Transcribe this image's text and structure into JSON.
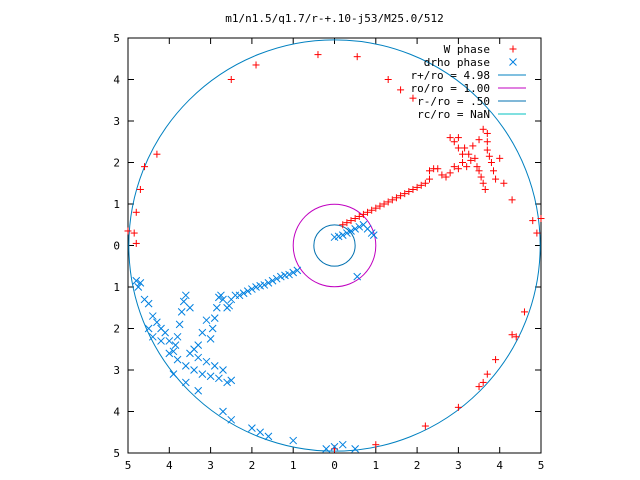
{
  "chart_data": {
    "type": "scatter",
    "title": "m1/n1.5/q1.7/r-+.10-j53/M25.0/512",
    "xlim": [
      -5,
      5
    ],
    "ylim": [
      -5,
      5
    ],
    "x_ticks": [
      -5,
      -4,
      -3,
      -2,
      -1,
      0,
      1,
      2,
      3,
      4,
      5
    ],
    "y_ticks": [
      -5,
      -4,
      -3,
      -2,
      -1,
      0,
      1,
      2,
      3,
      4,
      5
    ],
    "x_tick_labels": [
      "5",
      "4",
      "3",
      "2",
      "1",
      "0",
      "1",
      "2",
      "3",
      "4",
      "5"
    ],
    "y_tick_labels": [
      "5",
      "4",
      "3",
      "2",
      "1",
      "0",
      "1",
      "2",
      "3",
      "4",
      "5"
    ],
    "grid": false,
    "legend_position": "top-right",
    "legend": [
      {
        "label": "W phase",
        "type": "points",
        "marker": "+",
        "color": "#ff0000"
      },
      {
        "label": "drho phase",
        "type": "points",
        "marker": "x",
        "color": "#0080e0"
      },
      {
        "label": "r+/ro = 4.98",
        "type": "line",
        "color": "#0080c0"
      },
      {
        "label": "ro/ro = 1.00",
        "type": "line",
        "color": "#c000c0"
      },
      {
        "label": "r-/ro = .50",
        "type": "line",
        "color": "#0070b0"
      },
      {
        "label": "rc/ro = NaN",
        "type": "line",
        "color": "#00c0c0"
      }
    ],
    "circles": [
      {
        "name": "r+/ro",
        "radius": 4.98,
        "color": "#0080c0"
      },
      {
        "name": "ro/ro",
        "radius": 1.0,
        "color": "#c000c0"
      },
      {
        "name": "r-/ro",
        "radius": 0.5,
        "color": "#0070b0"
      }
    ],
    "series": [
      {
        "name": "W phase",
        "marker": "+",
        "color": "#ff0000",
        "points": [
          [
            -0.4,
            4.6
          ],
          [
            -1.9,
            4.35
          ],
          [
            -2.5,
            4.0
          ],
          [
            -4.3,
            2.2
          ],
          [
            -4.6,
            1.9
          ],
          [
            -4.7,
            1.35
          ],
          [
            -4.8,
            0.8
          ],
          [
            -4.85,
            0.3
          ],
          [
            -5.0,
            0.35
          ],
          [
            -4.8,
            0.05
          ],
          [
            0.55,
            4.55
          ],
          [
            1.3,
            4.0
          ],
          [
            1.6,
            3.75
          ],
          [
            1.9,
            3.55
          ],
          [
            3.0,
            2.6
          ],
          [
            3.5,
            2.55
          ],
          [
            3.7,
            2.5
          ],
          [
            4.0,
            2.1
          ],
          [
            4.1,
            1.5
          ],
          [
            4.3,
            1.1
          ],
          [
            4.8,
            0.6
          ],
          [
            5.0,
            0.65
          ],
          [
            4.9,
            0.3
          ],
          [
            4.6,
            -1.6
          ],
          [
            4.4,
            -2.2
          ],
          [
            4.3,
            -2.15
          ],
          [
            3.9,
            -2.75
          ],
          [
            3.7,
            -3.1
          ],
          [
            3.6,
            -3.3
          ],
          [
            3.5,
            -3.4
          ],
          [
            3.0,
            -3.9
          ],
          [
            2.2,
            -4.35
          ],
          [
            1.0,
            -4.8
          ],
          [
            0.0,
            -4.9
          ],
          [
            0.2,
            0.5
          ],
          [
            0.3,
            0.55
          ],
          [
            0.4,
            0.6
          ],
          [
            0.5,
            0.65
          ],
          [
            0.6,
            0.7
          ],
          [
            0.7,
            0.75
          ],
          [
            0.8,
            0.8
          ],
          [
            0.9,
            0.85
          ],
          [
            1.0,
            0.9
          ],
          [
            1.1,
            0.95
          ],
          [
            1.2,
            1.0
          ],
          [
            1.3,
            1.05
          ],
          [
            1.4,
            1.1
          ],
          [
            1.5,
            1.15
          ],
          [
            1.6,
            1.2
          ],
          [
            1.7,
            1.25
          ],
          [
            1.8,
            1.3
          ],
          [
            1.9,
            1.35
          ],
          [
            2.0,
            1.4
          ],
          [
            2.1,
            1.45
          ],
          [
            2.2,
            1.5
          ],
          [
            2.3,
            1.6
          ],
          [
            2.3,
            1.8
          ],
          [
            2.4,
            1.85
          ],
          [
            2.5,
            1.85
          ],
          [
            2.6,
            1.7
          ],
          [
            2.7,
            1.65
          ],
          [
            2.8,
            1.75
          ],
          [
            2.9,
            1.9
          ],
          [
            3.0,
            1.85
          ],
          [
            3.1,
            2.0
          ],
          [
            3.2,
            1.9
          ],
          [
            3.3,
            2.05
          ],
          [
            2.8,
            2.6
          ],
          [
            2.9,
            2.5
          ],
          [
            3.0,
            2.35
          ],
          [
            3.1,
            2.2
          ],
          [
            3.15,
            2.35
          ],
          [
            3.25,
            2.2
          ],
          [
            3.35,
            2.4
          ],
          [
            3.4,
            2.1
          ],
          [
            3.45,
            1.9
          ],
          [
            3.5,
            1.8
          ],
          [
            3.55,
            1.65
          ],
          [
            3.6,
            1.5
          ],
          [
            3.65,
            1.35
          ],
          [
            3.7,
            2.3
          ],
          [
            3.75,
            2.15
          ],
          [
            3.8,
            2.0
          ],
          [
            3.85,
            1.8
          ],
          [
            3.9,
            1.6
          ],
          [
            3.6,
            2.8
          ],
          [
            3.7,
            2.7
          ]
        ]
      },
      {
        "name": "drho phase",
        "marker": "x",
        "color": "#0080e0",
        "points": [
          [
            0.4,
            0.35
          ],
          [
            0.3,
            0.3
          ],
          [
            0.2,
            0.25
          ],
          [
            0.5,
            0.4
          ],
          [
            0.6,
            0.45
          ],
          [
            0.7,
            0.5
          ],
          [
            0.8,
            0.4
          ],
          [
            0.9,
            0.3
          ],
          [
            0.95,
            0.25
          ],
          [
            0.55,
            -0.75
          ],
          [
            -0.9,
            -0.6
          ],
          [
            -1.0,
            -0.65
          ],
          [
            -1.1,
            -0.7
          ],
          [
            -1.2,
            -0.72
          ],
          [
            -1.3,
            -0.75
          ],
          [
            -1.4,
            -0.8
          ],
          [
            -1.5,
            -0.85
          ],
          [
            -1.6,
            -0.9
          ],
          [
            -1.7,
            -0.95
          ],
          [
            -1.8,
            -0.97
          ],
          [
            -1.9,
            -1.0
          ],
          [
            -2.0,
            -1.05
          ],
          [
            -2.1,
            -1.1
          ],
          [
            -2.2,
            -1.15
          ],
          [
            -2.3,
            -1.2
          ],
          [
            -2.4,
            -1.2
          ],
          [
            -2.5,
            -1.3
          ],
          [
            -2.55,
            -1.45
          ],
          [
            -2.6,
            -1.5
          ],
          [
            -2.7,
            -1.3
          ],
          [
            -2.75,
            -1.2
          ],
          [
            -2.8,
            -1.25
          ],
          [
            -2.85,
            -1.5
          ],
          [
            -2.9,
            -1.75
          ],
          [
            -2.95,
            -2.0
          ],
          [
            -3.0,
            -2.25
          ],
          [
            -3.1,
            -1.8
          ],
          [
            -3.2,
            -2.1
          ],
          [
            -3.3,
            -2.4
          ],
          [
            -3.4,
            -2.5
          ],
          [
            -3.5,
            -1.5
          ],
          [
            -3.6,
            -1.2
          ],
          [
            -3.65,
            -1.35
          ],
          [
            -3.7,
            -1.6
          ],
          [
            -3.75,
            -1.9
          ],
          [
            -3.8,
            -2.2
          ],
          [
            -3.85,
            -2.4
          ],
          [
            -3.9,
            -2.55
          ],
          [
            -4.0,
            -2.3
          ],
          [
            -4.1,
            -2.1
          ],
          [
            -4.2,
            -2.0
          ],
          [
            -4.3,
            -1.85
          ],
          [
            -4.4,
            -1.7
          ],
          [
            -4.5,
            -1.4
          ],
          [
            -4.6,
            -1.3
          ],
          [
            -4.7,
            -0.9
          ],
          [
            -4.8,
            -0.85
          ],
          [
            -4.75,
            -1.0
          ],
          [
            -4.5,
            -2.0
          ],
          [
            -4.4,
            -2.2
          ],
          [
            -4.2,
            -2.3
          ],
          [
            -4.0,
            -2.6
          ],
          [
            -3.8,
            -2.75
          ],
          [
            -3.6,
            -2.9
          ],
          [
            -3.4,
            -3.0
          ],
          [
            -3.2,
            -3.1
          ],
          [
            -3.0,
            -3.15
          ],
          [
            -2.8,
            -3.2
          ],
          [
            -2.6,
            -3.3
          ],
          [
            -2.5,
            -3.25
          ],
          [
            -3.1,
            -2.8
          ],
          [
            -3.3,
            -2.7
          ],
          [
            -3.5,
            -2.6
          ],
          [
            -2.9,
            -2.9
          ],
          [
            -2.7,
            -3.0
          ],
          [
            -3.9,
            -3.1
          ],
          [
            -3.6,
            -3.3
          ],
          [
            -3.3,
            -3.5
          ],
          [
            -2.7,
            -4.0
          ],
          [
            -2.5,
            -4.2
          ],
          [
            -2.0,
            -4.4
          ],
          [
            -1.8,
            -4.5
          ],
          [
            -1.6,
            -4.6
          ],
          [
            -1.0,
            -4.7
          ],
          [
            0.0,
            -4.85
          ],
          [
            0.2,
            -4.8
          ],
          [
            0.5,
            -4.9
          ],
          [
            -0.2,
            -4.9
          ],
          [
            0.0,
            0.2
          ],
          [
            0.1,
            0.22
          ]
        ]
      }
    ]
  }
}
